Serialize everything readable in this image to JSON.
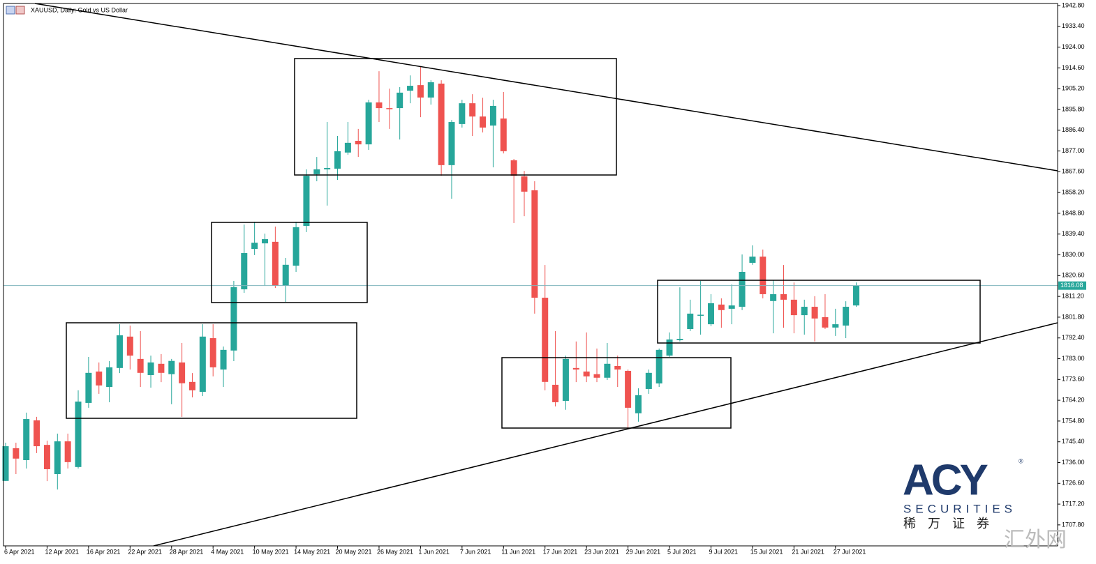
{
  "chart_data": {
    "type": "candlestick",
    "title": "XAUUSD, Daily:  Gold vs US Dollar",
    "up_color": "#26a69a",
    "down_color": "#ef5350",
    "current_price": 1816.08,
    "ylim": [
      1698.3,
      1943.75
    ],
    "yticks": [
      {
        "value": 1942.8,
        "label": "1942.80"
      },
      {
        "value": 1933.4,
        "label": "1933.40"
      },
      {
        "value": 1924,
        "label": "1924.00"
      },
      {
        "value": 1914.6,
        "label": "1914.60"
      },
      {
        "value": 1905.2,
        "label": "1905.20"
      },
      {
        "value": 1895.8,
        "label": "1895.80"
      },
      {
        "value": 1886.4,
        "label": "1886.40"
      },
      {
        "value": 1877,
        "label": "1877.00"
      },
      {
        "value": 1867.6,
        "label": "1867.60"
      },
      {
        "value": 1858.2,
        "label": "1858.20"
      },
      {
        "value": 1848.8,
        "label": "1848.80"
      },
      {
        "value": 1839.4,
        "label": "1839.40"
      },
      {
        "value": 1830,
        "label": "1830.00"
      },
      {
        "value": 1820.6,
        "label": "1820.60"
      },
      {
        "value": 1811.2,
        "label": "1811.20"
      },
      {
        "value": 1801.8,
        "label": "1801.80"
      },
      {
        "value": 1792.4,
        "label": "1792.40"
      },
      {
        "value": 1783,
        "label": "1783.00"
      },
      {
        "value": 1773.6,
        "label": "1773.60"
      },
      {
        "value": 1764.2,
        "label": "1764.20"
      },
      {
        "value": 1754.8,
        "label": "1754.80"
      },
      {
        "value": 1745.4,
        "label": "1745.40"
      },
      {
        "value": 1736,
        "label": "1736.00"
      },
      {
        "value": 1726.6,
        "label": "1726.60"
      },
      {
        "value": 1717.2,
        "label": "1717.20"
      },
      {
        "value": 1707.8,
        "label": "1707.80"
      }
    ],
    "categories": [
      "6 Apr 2021",
      null,
      null,
      null,
      "12 Apr 2021",
      null,
      null,
      null,
      "16 Apr 2021",
      null,
      null,
      null,
      "22 Apr 2021",
      null,
      null,
      null,
      "28 Apr 2021",
      null,
      null,
      null,
      "4 May 2021",
      null,
      null,
      null,
      "10 May 2021",
      null,
      null,
      null,
      "14 May 2021",
      null,
      null,
      null,
      "20 May 2021",
      null,
      null,
      null,
      "26 May 2021",
      null,
      null,
      null,
      "1 Jun 2021",
      null,
      null,
      null,
      "7 Jun 2021",
      null,
      null,
      null,
      "11 Jun 2021",
      null,
      null,
      null,
      "17 Jun 2021",
      null,
      null,
      null,
      "23 Jun 2021",
      null,
      null,
      null,
      "29 Jun 2021",
      null,
      null,
      null,
      "5 Jul 2021",
      null,
      null,
      null,
      "9 Jul 2021",
      null,
      null,
      null,
      "15 Jul 2021",
      null,
      null,
      null,
      "21 Jul 2021",
      null,
      null,
      null,
      "27 Jul 2021",
      null,
      null
    ],
    "open": [
      1727.7,
      1742.5,
      1737.1,
      1755.1,
      1744.0,
      1730.8,
      1745.6,
      1734.0,
      1763.0,
      1777.2,
      1770.2,
      1778.8,
      1793.0,
      1782.9,
      1775.6,
      1780.7,
      1776.0,
      1781.3,
      1772.5,
      1768.0,
      1792.3,
      1778.1,
      1786.7,
      1814.4,
      1832.7,
      1835.2,
      1835.9,
      1816.0,
      1825.1,
      1843.1,
      1866.5,
      1868.7,
      1869.0,
      1876.3,
      1881.6,
      1880.0,
      1899.0,
      1896.4,
      1896.4,
      1904.3,
      1906.8,
      1901.2,
      1907.5,
      1870.6,
      1889.2,
      1898.6,
      1892.6,
      1888.5,
      1891.7,
      1872.8,
      1865.5,
      1859.2,
      1810.6,
      1771.2,
      1763.9,
      1778.8,
      1777.2,
      1776.0,
      1774.4,
      1779.7,
      1777.5,
      1758.3,
      1769.3,
      1771.8,
      1784.4,
      1791.4,
      1796.4,
      1802.7,
      1798.6,
      1807.5,
      1805.6,
      1806.5,
      1826.4,
      1829.2,
      1809.1,
      1812.2,
      1809.7,
      1802.7,
      1806.5,
      1801.8,
      1797.1,
      1798.0,
      1807.1
    ],
    "high": [
      1745.0,
      1745.0,
      1758.6,
      1756.7,
      1745.9,
      1749.1,
      1749.1,
      1768.7,
      1783.8,
      1781.3,
      1781.9,
      1798.6,
      1798.0,
      1795.5,
      1784.4,
      1785.1,
      1782.9,
      1790.1,
      1776.5,
      1798.6,
      1798.6,
      1788.5,
      1818.2,
      1843.7,
      1845.0,
      1839.6,
      1842.8,
      1828.6,
      1845.0,
      1868.7,
      1874.3,
      1890.1,
      1883.8,
      1890.1,
      1887.0,
      1900.2,
      1913.1,
      1905.2,
      1905.9,
      1911.2,
      1915.3,
      1909.0,
      1909.0,
      1891.0,
      1900.2,
      1902.7,
      1901.1,
      1900.2,
      1903.7,
      1873.4,
      1868.0,
      1863.3,
      1825.4,
      1795.5,
      1784.4,
      1790.8,
      1794.9,
      1787.6,
      1790.1,
      1784.4,
      1778.1,
      1769.6,
      1778.1,
      1787.6,
      1794.9,
      1815.3,
      1809.7,
      1818.2,
      1812.2,
      1810.3,
      1816.6,
      1830.2,
      1834.3,
      1832.4,
      1818.5,
      1825.4,
      1817.5,
      1809.7,
      1811.3,
      1812.2,
      1805.6,
      1809.0,
      1817.5
    ],
    "low": [
      1727.6,
      1730.8,
      1733.3,
      1740.3,
      1727.6,
      1723.8,
      1733.3,
      1733.3,
      1760.8,
      1767.1,
      1763.3,
      1776.5,
      1778.1,
      1770.2,
      1769.9,
      1772.4,
      1762.4,
      1756.7,
      1765.5,
      1766.1,
      1775.0,
      1770.2,
      1781.9,
      1812.8,
      1829.9,
      1816.0,
      1815.0,
      1808.7,
      1822.3,
      1840.3,
      1863.3,
      1852.3,
      1863.9,
      1875.3,
      1874.3,
      1877.5,
      1890.1,
      1887.0,
      1882.2,
      1898.6,
      1892.3,
      1898.0,
      1865.8,
      1855.4,
      1887.6,
      1883.8,
      1885.4,
      1869.6,
      1875.9,
      1844.4,
      1847.5,
      1803.4,
      1768.7,
      1761.4,
      1759.9,
      1772.4,
      1772.4,
      1772.4,
      1773.4,
      1770.2,
      1751.6,
      1754.5,
      1767.1,
      1770.2,
      1783.8,
      1790.8,
      1795.5,
      1793.9,
      1797.7,
      1797.0,
      1798.6,
      1805.0,
      1825.5,
      1810.3,
      1794.5,
      1797.0,
      1794.5,
      1793.9,
      1790.8,
      1796.4,
      1793.3,
      1792.3,
      1806.5
    ],
    "close": [
      1743.4,
      1737.8,
      1755.7,
      1743.4,
      1733.0,
      1745.6,
      1736.2,
      1763.6,
      1776.6,
      1770.9,
      1779.1,
      1793.6,
      1784.4,
      1776.6,
      1781.3,
      1776.6,
      1782.0,
      1771.9,
      1768.7,
      1793.0,
      1779.1,
      1787.0,
      1815.4,
      1830.8,
      1835.5,
      1837.1,
      1816.0,
      1825.5,
      1842.5,
      1865.8,
      1868.7,
      1869.3,
      1876.9,
      1880.7,
      1880.0,
      1899.0,
      1896.4,
      1896.1,
      1903.4,
      1906.5,
      1901.2,
      1908.1,
      1870.6,
      1890.1,
      1898.6,
      1892.6,
      1887.6,
      1897.4,
      1876.9,
      1865.8,
      1858.6,
      1810.6,
      1772.5,
      1763.3,
      1782.9,
      1778.1,
      1775.0,
      1774.4,
      1780.7,
      1778.1,
      1760.8,
      1766.5,
      1776.6,
      1787.0,
      1791.7,
      1792.0,
      1803.4,
      1802.9,
      1808.1,
      1805.0,
      1807.1,
      1822.3,
      1829.2,
      1812.2,
      1812.2,
      1809.7,
      1802.7,
      1806.5,
      1801.2,
      1797.1,
      1798.6,
      1806.5,
      1816.1
    ]
  },
  "watermark": {
    "brand": "ACY",
    "registered": "®",
    "tagline": "SECURITIES",
    "chinese": "稀 万 证 券",
    "corner": "汇外网"
  }
}
